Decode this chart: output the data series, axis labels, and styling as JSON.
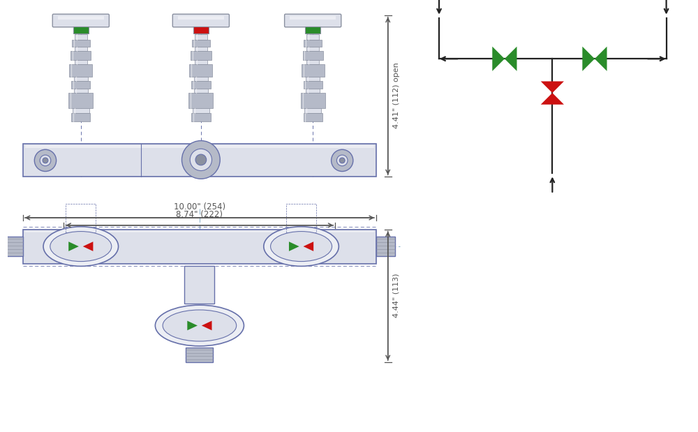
{
  "green_color": "#2a8c2a",
  "red_color": "#cc1111",
  "dark_color": "#222222",
  "steel_light": "#dde0ea",
  "steel_mid": "#b5bac8",
  "steel_dark": "#8a90a0",
  "steel_xlight": "#eceef4",
  "line_color": "#6670aa",
  "dim_color": "#555555",
  "dim1_text": "4.41\" (112) open",
  "dim2_text": "10.00\" (254)",
  "dim3_text": "8.74\" (222)",
  "dim4_text": "4.44\" (113)"
}
